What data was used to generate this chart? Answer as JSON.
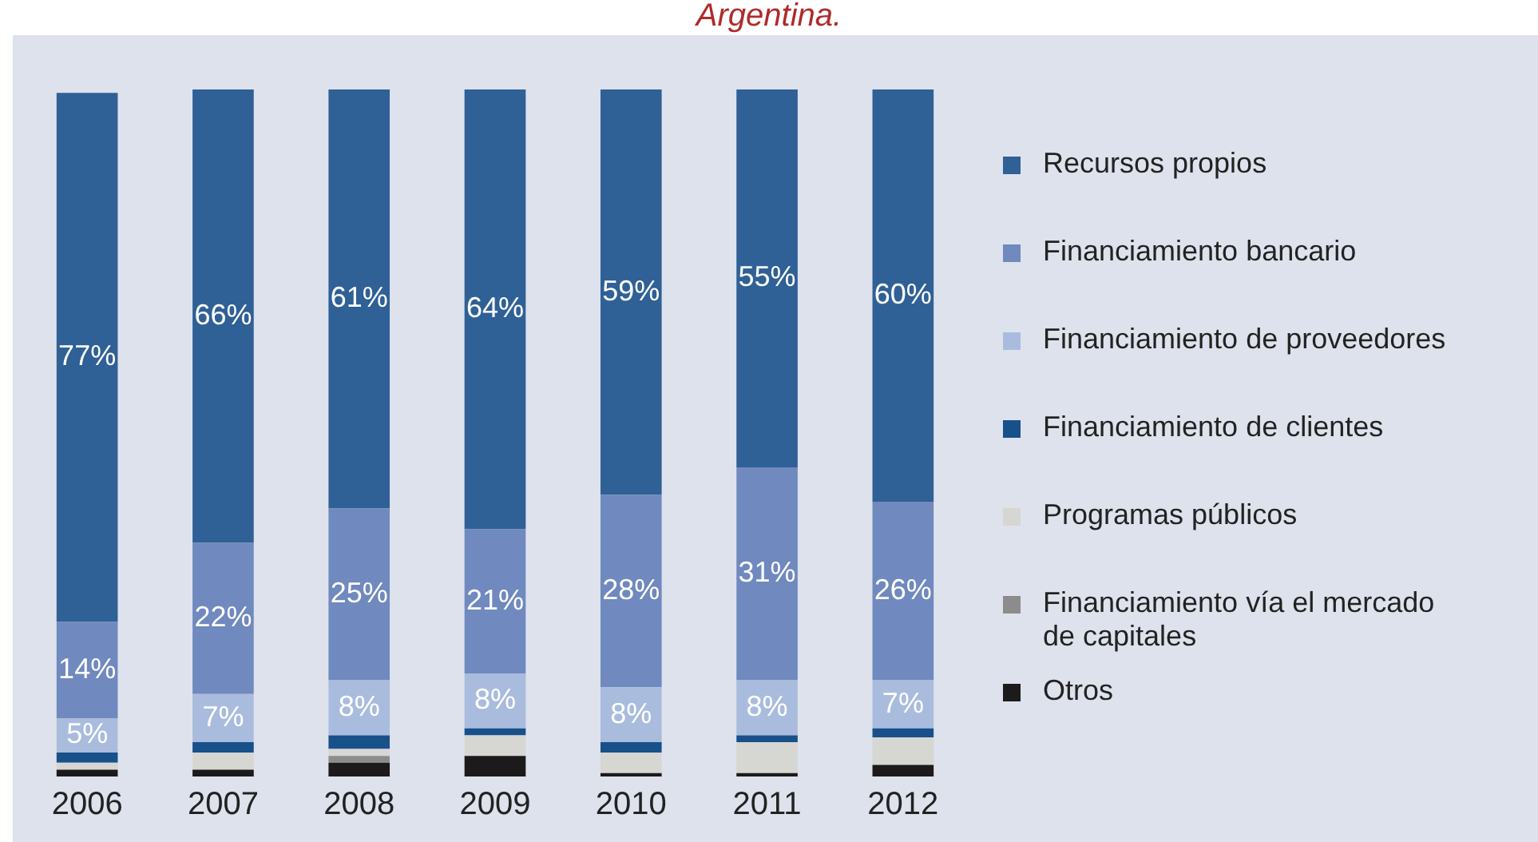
{
  "chart_data": {
    "type": "bar",
    "title": "Argentina.",
    "stacked": true,
    "categories": [
      "2006",
      "2007",
      "2008",
      "2009",
      "2010",
      "2011",
      "2012"
    ],
    "ylim": [
      0,
      100
    ],
    "legend": "right",
    "tick_labels": "x",
    "grid": false,
    "series": [
      {
        "name": "Otros",
        "color": "#1c1a1a",
        "values": [
          1,
          1,
          2,
          3,
          0.5,
          0.5,
          1.7
        ]
      },
      {
        "name": "Financiamiento vía el mercado\nde capitales",
        "color": "#8c8c8c",
        "values": [
          0,
          0,
          1,
          0,
          0,
          0,
          0
        ]
      },
      {
        "name": "Programas públicos",
        "color": "#d6d6d3",
        "values": [
          1,
          2.5,
          1,
          3,
          3,
          4.5,
          4
        ]
      },
      {
        "name": "Financiamiento de clientes",
        "color": "#18508a",
        "values": [
          1.5,
          1.5,
          2,
          1,
          1.5,
          1,
          1.3
        ]
      },
      {
        "name": "Financiamiento de proveedores",
        "color": "#aabcdd",
        "values": [
          5,
          7,
          8,
          8,
          8,
          8,
          7
        ],
        "value_labels": [
          "5%",
          "7%",
          "8%",
          "8%",
          "8%",
          "8%",
          "7%"
        ]
      },
      {
        "name": "Financiamiento bancario",
        "color": "#7089be",
        "values": [
          14,
          22,
          25,
          21,
          28,
          31,
          26
        ],
        "value_labels": [
          "14%",
          "22%",
          "25%",
          "21%",
          "28%",
          "31%",
          "26%"
        ]
      },
      {
        "name": "Recursos propios",
        "color": "#2f6096",
        "values": [
          77,
          66,
          61,
          64,
          59,
          55,
          60
        ],
        "value_labels": [
          "77%",
          "66%",
          "61%",
          "64%",
          "59%",
          "55%",
          "60%"
        ]
      }
    ]
  }
}
